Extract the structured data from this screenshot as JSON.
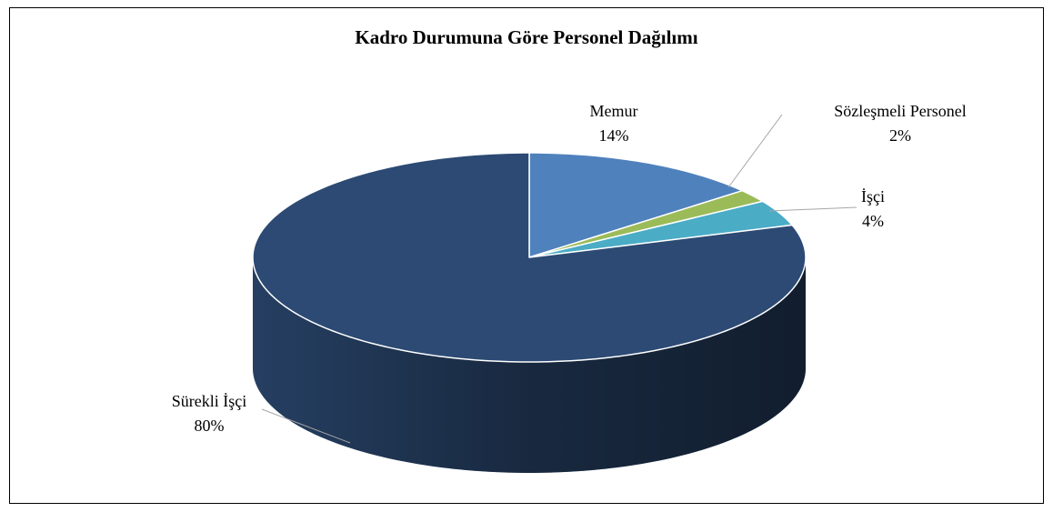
{
  "chart_data": {
    "type": "pie3d",
    "title": "Kadro Durumuna Göre Personel Dağılımı",
    "categories": [
      "Memur",
      "Sözleşmeli Personel",
      "İşçi",
      "Sürekli İşçi"
    ],
    "values": [
      14,
      2,
      4,
      80
    ],
    "value_labels": [
      "14%",
      "2%",
      "4%",
      "80%"
    ],
    "colors": [
      "#4f81bd",
      "#9bbb59",
      "#4bacc6",
      "#2c4a73"
    ]
  }
}
